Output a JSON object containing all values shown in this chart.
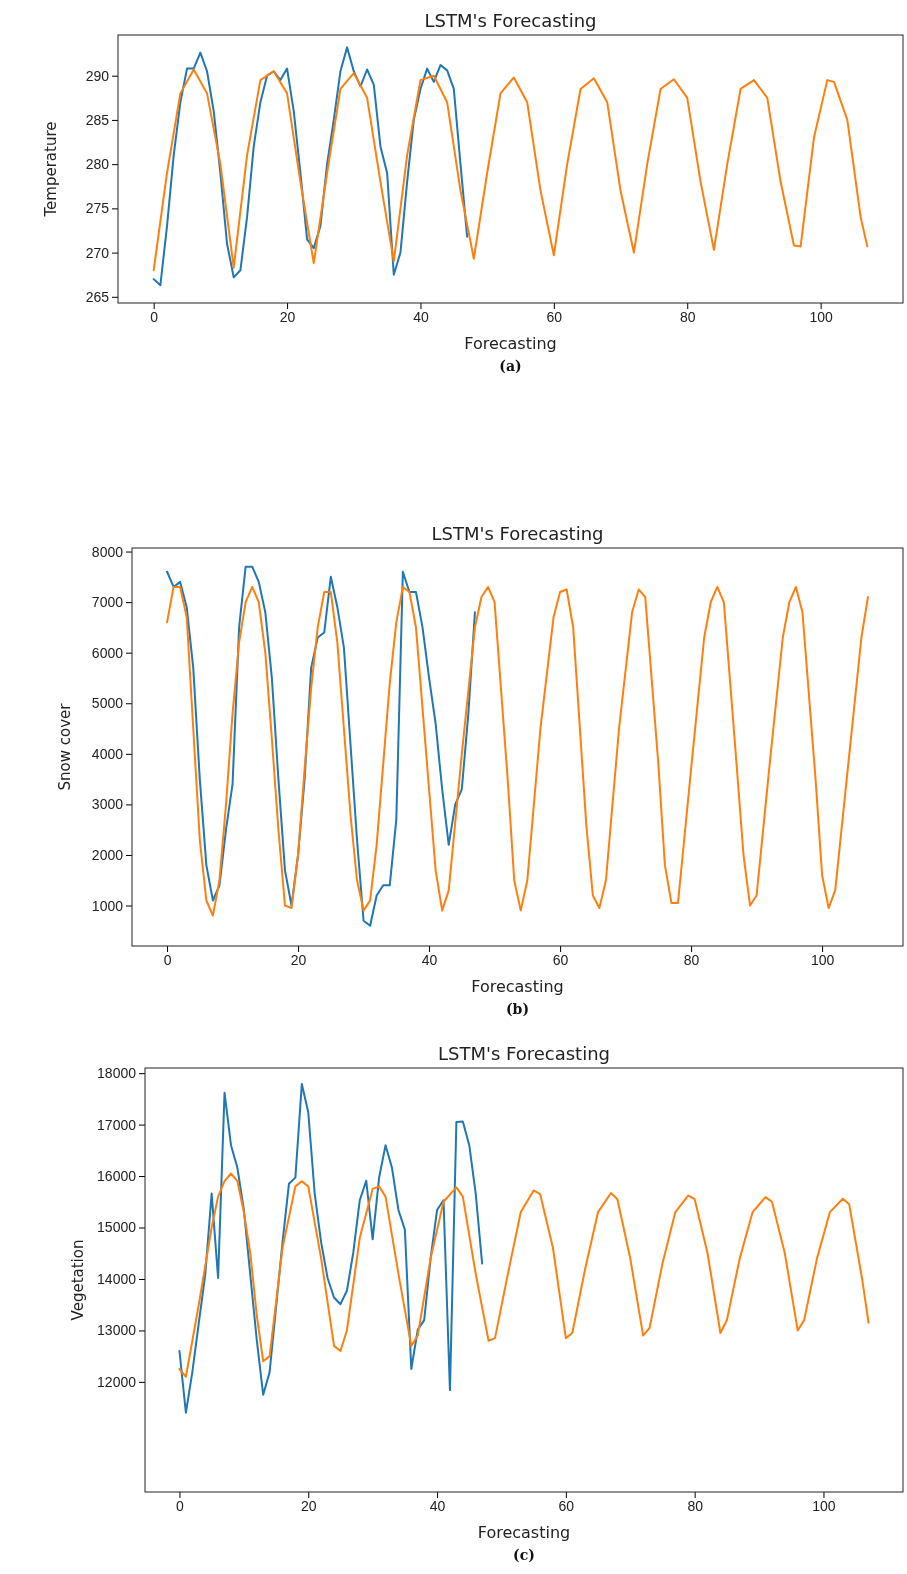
{
  "chart_data": [
    {
      "type": "line",
      "title": "LSTM's Forecasting",
      "xlabel": "Forecasting",
      "ylabel": "Temperature",
      "annotations": [
        "(a)"
      ],
      "xlim": [
        -5.35,
        112.35
      ],
      "xticks": [
        0,
        20,
        40,
        60,
        80,
        100
      ],
      "ylim": [
        264.3,
        294.6
      ],
      "yticks": [
        265,
        270,
        275,
        280,
        285,
        290
      ],
      "grid": false,
      "series": [
        {
          "color": "#1f77b4",
          "x": [
            0,
            1,
            2,
            3,
            4,
            5,
            6,
            7,
            8,
            9,
            10,
            11,
            12,
            13,
            14,
            15,
            16,
            17,
            18,
            19,
            20,
            21,
            22,
            23,
            24,
            25,
            26,
            27,
            28,
            29,
            30,
            31,
            32,
            33,
            34,
            35,
            36,
            37,
            38,
            39,
            40,
            41,
            42,
            43,
            44,
            45,
            46,
            47
          ],
          "values": [
            267,
            266.3,
            273,
            281,
            287,
            290.8,
            290.8,
            292.6,
            290.5,
            286,
            279,
            271,
            267.2,
            268,
            274,
            282,
            287,
            290,
            290.5,
            289.5,
            290.8,
            286,
            279,
            271.5,
            270.5,
            273,
            280,
            285,
            290.5,
            293.2,
            290.5,
            288.8,
            290.7,
            289,
            282,
            279,
            267.5,
            270,
            278,
            285,
            288.5,
            290.8,
            289.3,
            291.2,
            290.6,
            288.5,
            280,
            271.8
          ]
        },
        {
          "color": "#ff7f0e",
          "x": [
            0,
            2,
            4,
            6,
            8,
            10,
            12,
            14,
            16,
            18,
            20,
            22,
            24,
            26,
            28,
            30,
            32,
            34,
            36,
            38,
            40,
            42,
            44,
            46,
            48,
            50,
            52,
            54,
            56,
            58,
            60,
            62,
            64,
            66,
            68,
            70,
            72,
            74,
            76,
            78,
            80,
            82,
            84,
            86,
            88,
            90,
            92,
            94,
            96,
            97,
            99,
            101,
            102,
            104,
            106,
            107
          ],
          "values": [
            268,
            279,
            288,
            290.7,
            288,
            280,
            268.3,
            281,
            289.5,
            290.5,
            288,
            278,
            268.8,
            279,
            288.5,
            290.3,
            287.5,
            278,
            269,
            281,
            289.5,
            290,
            287,
            277,
            269.3,
            279,
            288,
            289.8,
            287,
            277,
            269.7,
            280,
            288.5,
            289.7,
            287,
            277,
            270,
            280,
            288.5,
            289.6,
            287.5,
            278,
            270.3,
            280,
            288.5,
            289.5,
            287.5,
            278,
            270.8,
            270.7,
            283,
            289.5,
            289.3,
            285,
            274,
            270.7
          ]
        }
      ]
    },
    {
      "type": "line",
      "title": "LSTM's Forecasting",
      "xlabel": "Forecasting",
      "ylabel": "Snow cover",
      "annotations": [
        "(b)"
      ],
      "xlim": [
        -5.35,
        112.35
      ],
      "xticks": [
        0,
        20,
        40,
        60,
        80,
        100
      ],
      "ylim": [
        200,
        8070
      ],
      "yticks": [
        1000,
        2000,
        3000,
        4000,
        5000,
        6000,
        7000,
        8000
      ],
      "grid": false,
      "series": [
        {
          "color": "#1f77b4",
          "x": [
            0,
            1,
            2,
            3,
            4,
            5,
            6,
            7,
            8,
            9,
            10,
            11,
            12,
            13,
            14,
            15,
            16,
            17,
            18,
            19,
            20,
            21,
            22,
            23,
            24,
            25,
            26,
            27,
            28,
            29,
            30,
            31,
            32,
            33,
            34,
            35,
            36,
            37,
            38,
            39,
            40,
            41,
            42,
            43,
            44,
            45,
            46,
            47
          ],
          "values": [
            7600,
            7300,
            7400,
            6900,
            5700,
            3500,
            1800,
            1100,
            1400,
            2500,
            3400,
            6500,
            7700,
            7700,
            7400,
            6800,
            5500,
            3500,
            1700,
            1000,
            2000,
            3500,
            5700,
            6300,
            6400,
            7500,
            6900,
            6100,
            4200,
            2300,
            700,
            600,
            1200,
            1400,
            1400,
            2700,
            7600,
            7200,
            7200,
            6500,
            5500,
            4600,
            3300,
            2200,
            3000,
            3300,
            4800,
            6800
          ]
        },
        {
          "color": "#ff7f0e",
          "x": [
            0,
            1,
            2,
            3,
            4,
            5,
            6,
            7,
            8,
            9,
            10,
            11,
            12,
            13,
            14,
            15,
            16,
            17,
            18,
            19,
            20,
            21,
            22,
            23,
            24,
            25,
            26,
            27,
            28,
            29,
            30,
            31,
            32,
            33,
            34,
            35,
            36,
            37,
            38,
            40,
            41,
            42,
            43,
            45,
            47,
            48,
            49,
            50,
            52,
            53,
            54,
            55,
            57,
            59,
            60,
            61,
            62,
            64,
            65,
            66,
            67,
            69,
            71,
            72,
            73,
            75,
            76,
            77,
            78,
            80,
            82,
            83,
            84,
            85,
            87,
            88,
            89,
            90,
            92,
            94,
            95,
            96,
            97,
            99,
            100,
            101,
            102,
            104,
            106,
            107
          ],
          "values": [
            6600,
            7300,
            7300,
            6700,
            4500,
            2300,
            1100,
            800,
            1500,
            3000,
            4800,
            6200,
            7000,
            7300,
            7000,
            6000,
            4300,
            2500,
            1000,
            950,
            2000,
            3700,
            5300,
            6500,
            7200,
            7200,
            6200,
            4500,
            2800,
            1500,
            900,
            1100,
            2200,
            3800,
            5400,
            6600,
            7300,
            7200,
            6500,
            3300,
            1700,
            900,
            1300,
            4000,
            6500,
            7100,
            7300,
            7000,
            3500,
            1500,
            900,
            1500,
            4500,
            6700,
            7200,
            7250,
            6500,
            2600,
            1200,
            950,
            1500,
            4500,
            6800,
            7250,
            7100,
            3800,
            1800,
            1050,
            1050,
            3700,
            6300,
            7000,
            7300,
            7000,
            3700,
            2000,
            1000,
            1200,
            3800,
            6300,
            7000,
            7300,
            6800,
            3500,
            1600,
            950,
            1300,
            3800,
            6300,
            7100
          ]
        }
      ]
    },
    {
      "type": "line",
      "title": "LSTM's Forecasting",
      "xlabel": "Forecasting",
      "ylabel": "Vegetation",
      "annotations": [
        "(c)"
      ],
      "xlim": [
        -5.35,
        112.35
      ],
      "xticks": [
        0,
        20,
        40,
        60,
        80,
        100
      ],
      "ylim": [
        9860,
        18100
      ],
      "yticks": [
        12000,
        13000,
        14000,
        15000,
        16000,
        17000,
        18000
      ],
      "grid": false,
      "series": [
        {
          "color": "#1f77b4",
          "x": [
            0,
            1,
            2,
            3,
            4,
            5,
            6,
            7,
            8,
            9,
            10,
            11,
            12,
            13,
            14,
            15,
            16,
            17,
            18,
            19,
            20,
            21,
            22,
            23,
            24,
            25,
            26,
            27,
            28,
            29,
            30,
            31,
            32,
            33,
            34,
            35,
            36,
            37,
            38,
            39,
            40,
            41,
            42,
            43,
            44,
            45,
            46,
            47
          ],
          "values": [
            12600,
            11400,
            12190,
            13140,
            14080,
            15660,
            14020,
            17620,
            16600,
            16160,
            15340,
            14080,
            12820,
            11750,
            12190,
            13450,
            14710,
            15850,
            15970,
            17790,
            17240,
            15660,
            14710,
            14020,
            13640,
            13510,
            13770,
            14520,
            15530,
            15910,
            14770,
            15970,
            16600,
            16160,
            15340,
            14960,
            12250,
            13010,
            13200,
            14400,
            15340,
            15530,
            11840,
            17050,
            17060,
            16600,
            15660,
            14300
          ]
        },
        {
          "color": "#ff7f0e",
          "x": [
            0,
            1,
            3,
            5,
            6,
            7,
            8,
            9,
            10,
            11,
            12,
            13,
            14,
            16,
            18,
            19,
            20,
            22,
            24,
            25,
            26,
            28,
            30,
            31,
            32,
            34,
            36,
            37,
            39,
            41,
            43,
            44,
            46,
            48,
            49,
            51,
            53,
            55,
            56,
            58,
            60,
            61,
            63,
            65,
            67,
            68,
            70,
            72,
            73,
            75,
            77,
            79,
            80,
            82,
            84,
            85,
            87,
            89,
            91,
            92,
            94,
            96,
            97,
            99,
            101,
            103,
            104,
            106,
            107
          ],
          "values": [
            12250,
            12100,
            13500,
            15000,
            15600,
            15900,
            16050,
            15900,
            15300,
            14500,
            13300,
            12400,
            12500,
            14600,
            15800,
            15900,
            15800,
            14400,
            12700,
            12600,
            13000,
            14800,
            15750,
            15800,
            15600,
            14100,
            12700,
            12900,
            14400,
            15500,
            15780,
            15600,
            14100,
            12800,
            12850,
            14100,
            15300,
            15720,
            15650,
            14600,
            12850,
            12950,
            14200,
            15300,
            15670,
            15550,
            14400,
            12900,
            13050,
            14300,
            15300,
            15620,
            15550,
            14500,
            12950,
            13200,
            14400,
            15300,
            15590,
            15500,
            14500,
            13000,
            13200,
            14400,
            15300,
            15560,
            15450,
            14000,
            13150
          ]
        }
      ]
    }
  ]
}
